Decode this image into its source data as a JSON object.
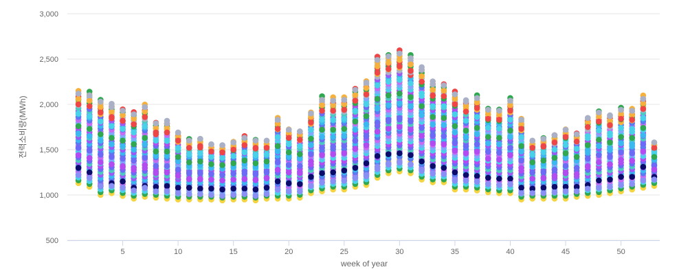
{
  "chart_data": {
    "type": "scatter",
    "title": "",
    "xlabel": "week of year",
    "ylabel": "전력소비량(MWh)",
    "xlim": [
      0,
      53.5
    ],
    "ylim": [
      500,
      3000
    ],
    "x_ticks": [
      "5",
      "10",
      "15",
      "20",
      "25",
      "30",
      "35",
      "40",
      "45",
      "50"
    ],
    "y_ticks": [
      "500",
      "1,000",
      "1,500",
      "2,000",
      "2,500",
      "3,000"
    ],
    "grid": "horizontal",
    "legend": "none",
    "x": [
      1,
      2,
      3,
      4,
      5,
      6,
      7,
      8,
      9,
      10,
      11,
      12,
      13,
      14,
      15,
      16,
      17,
      18,
      19,
      20,
      21,
      22,
      23,
      24,
      25,
      26,
      27,
      28,
      29,
      30,
      31,
      32,
      33,
      34,
      35,
      36,
      37,
      38,
      39,
      40,
      41,
      42,
      43,
      44,
      45,
      46,
      47,
      48,
      49,
      50,
      51,
      52,
      53
    ],
    "weekly_range": {
      "min": [
        1130,
        1090,
        1000,
        1020,
        990,
        960,
        980,
        970,
        960,
        950,
        950,
        950,
        950,
        940,
        950,
        950,
        940,
        960,
        960,
        960,
        970,
        1020,
        1040,
        1060,
        1060,
        1090,
        1110,
        1190,
        1240,
        1260,
        1240,
        1170,
        1140,
        1140,
        1060,
        1060,
        1050,
        1030,
        1020,
        1020,
        950,
        960,
        960,
        960,
        960,
        980,
        990,
        1000,
        1020,
        1040,
        1060,
        1080,
        1100
      ],
      "max": [
        2160,
        2140,
        2070,
        2010,
        1970,
        1920,
        2010,
        1820,
        1820,
        1710,
        1620,
        1640,
        1580,
        1570,
        1600,
        1660,
        1620,
        1620,
        1870,
        1750,
        1730,
        1940,
        2090,
        2080,
        2090,
        2200,
        2280,
        2530,
        2570,
        2600,
        2550,
        2420,
        2260,
        2250,
        2150,
        2070,
        2110,
        1970,
        1970,
        2080,
        1860,
        1620,
        1640,
        1680,
        1750,
        1700,
        1880,
        1940,
        1900,
        1970,
        1960,
        2100,
        1600
      ]
    },
    "series": [
      {
        "color": "#6b6bf5",
        "values": [
          1520,
          1490,
          1450,
          1420,
          1400,
          1380,
          1410,
          1320,
          1320,
          1280,
          1250,
          1250,
          1230,
          1220,
          1240,
          1260,
          1240,
          1260,
          1360,
          1330,
          1320,
          1450,
          1520,
          1530,
          1540,
          1600,
          1650,
          1800,
          1830,
          1850,
          1820,
          1740,
          1660,
          1650,
          1580,
          1540,
          1560,
          1480,
          1470,
          1520,
          1380,
          1250,
          1260,
          1280,
          1320,
          1300,
          1400,
          1440,
          1420,
          1470,
          1460,
          1560,
          1330
        ]
      },
      {
        "color": "#b24cf0",
        "values": [
          1440,
          1410,
          1360,
          1340,
          1320,
          1300,
          1330,
          1240,
          1250,
          1210,
          1180,
          1180,
          1170,
          1160,
          1170,
          1180,
          1170,
          1190,
          1280,
          1250,
          1240,
          1370,
          1440,
          1450,
          1460,
          1510,
          1550,
          1700,
          1730,
          1750,
          1720,
          1650,
          1570,
          1560,
          1490,
          1460,
          1480,
          1400,
          1390,
          1440,
          1300,
          1180,
          1190,
          1210,
          1240,
          1230,
          1320,
          1360,
          1340,
          1390,
          1380,
          1480,
          1280
        ]
      },
      {
        "color": "#48d1e8",
        "values": [
          1900,
          1870,
          1810,
          1760,
          1730,
          1690,
          1760,
          1600,
          1600,
          1520,
          1450,
          1460,
          1420,
          1410,
          1430,
          1470,
          1440,
          1450,
          1640,
          1560,
          1540,
          1720,
          1830,
          1830,
          1840,
          1930,
          2000,
          2210,
          2250,
          2270,
          2230,
          2120,
          1980,
          1980,
          1890,
          1820,
          1860,
          1740,
          1730,
          1830,
          1640,
          1450,
          1470,
          1500,
          1550,
          1510,
          1650,
          1710,
          1680,
          1740,
          1730,
          1850,
          1470
        ]
      },
      {
        "color": "#3cb8f0",
        "values": [
          1680,
          1650,
          1600,
          1560,
          1540,
          1500,
          1560,
          1430,
          1430,
          1370,
          1320,
          1330,
          1300,
          1290,
          1310,
          1340,
          1310,
          1330,
          1480,
          1420,
          1400,
          1550,
          1640,
          1640,
          1650,
          1720,
          1780,
          1960,
          1990,
          2010,
          1980,
          1880,
          1780,
          1770,
          1690,
          1640,
          1670,
          1570,
          1560,
          1640,
          1480,
          1320,
          1340,
          1360,
          1410,
          1380,
          1490,
          1540,
          1510,
          1570,
          1560,
          1660,
          1390
        ]
      },
      {
        "color": "#f5b13b",
        "values": [
          2060,
          2040,
          1970,
          1920,
          1880,
          1840,
          1920,
          1740,
          1740,
          1640,
          1560,
          1580,
          1520,
          1510,
          1540,
          1590,
          1560,
          1560,
          1780,
          1680,
          1660,
          1860,
          1990,
          1990,
          2000,
          2100,
          2180,
          2420,
          2460,
          2490,
          2440,
          2310,
          2160,
          2150,
          2060,
          1980,
          2020,
          1890,
          1880,
          1990,
          1780,
          1560,
          1580,
          1620,
          1680,
          1630,
          1800,
          1860,
          1820,
          1890,
          1880,
          2010,
          1550
        ]
      },
      {
        "color": "#ee4646",
        "values": [
          2000,
          1980,
          1910,
          1860,
          1820,
          1780,
          1860,
          1690,
          1690,
          1600,
          1520,
          1540,
          1480,
          1470,
          1500,
          1550,
          1520,
          1520,
          1730,
          1630,
          1610,
          1800,
          1930,
          1930,
          1940,
          2040,
          2110,
          2350,
          2390,
          2420,
          2370,
          2250,
          2100,
          2090,
          2000,
          1920,
          1960,
          1840,
          1830,
          1930,
          1730,
          1520,
          1540,
          1580,
          1640,
          1590,
          1750,
          1810,
          1770,
          1840,
          1830,
          1950,
          1520
        ]
      },
      {
        "color": "#2fa84f",
        "values": [
          1760,
          1730,
          1670,
          1630,
          1600,
          1560,
          1630,
          1480,
          1480,
          1420,
          1360,
          1370,
          1340,
          1330,
          1350,
          1380,
          1350,
          1370,
          1540,
          1470,
          1450,
          1620,
          1720,
          1720,
          1730,
          1810,
          1870,
          2060,
          2100,
          2120,
          2080,
          1980,
          1860,
          1850,
          1760,
          1710,
          1740,
          1640,
          1630,
          1710,
          1540,
          1360,
          1380,
          1410,
          1460,
          1420,
          1550,
          1610,
          1580,
          1640,
          1630,
          1740,
          1420
        ]
      },
      {
        "color": "#0b0b6b",
        "values": [
          1300,
          1250,
          1100,
          1130,
          1150,
          1080,
          1100,
          1090,
          1100,
          1080,
          1080,
          1070,
          1070,
          1060,
          1070,
          1070,
          1060,
          1080,
          1150,
          1130,
          1120,
          1200,
          1240,
          1250,
          1270,
          1300,
          1350,
          1430,
          1450,
          1460,
          1440,
          1370,
          1320,
          1300,
          1250,
          1220,
          1210,
          1190,
          1180,
          1180,
          1080,
          1070,
          1080,
          1090,
          1090,
          1090,
          1110,
          1160,
          1170,
          1200,
          1200,
          1310,
          1200
        ]
      },
      {
        "color": "#aab0c6",
        "values": [
          2120,
          2100,
          2030,
          1970,
          1930,
          1890,
          1970,
          1790,
          1790,
          1690,
          1600,
          1620,
          1560,
          1550,
          1580,
          1630,
          1600,
          1600,
          1830,
          1720,
          1700,
          1900,
          2050,
          2040,
          2050,
          2160,
          2240,
          2490,
          2530,
          2560,
          2510,
          2380,
          2220,
          2210,
          2110,
          2030,
          2070,
          1940,
          1930,
          2040,
          1830,
          1600,
          1620,
          1660,
          1720,
          1670,
          1850,
          1910,
          1870,
          1940,
          1930,
          2060,
          1580
        ]
      },
      {
        "color": "#8a8ff5",
        "values": [
          1220,
          1190,
          1100,
          1100,
          1080,
          1050,
          1080,
          1040,
          1040,
          1020,
          1010,
          1010,
          1000,
          990,
          1000,
          1010,
          990,
          1010,
          1060,
          1040,
          1040,
          1100,
          1140,
          1150,
          1160,
          1190,
          1220,
          1310,
          1350,
          1370,
          1340,
          1280,
          1240,
          1230,
          1170,
          1160,
          1150,
          1120,
          1110,
          1120,
          1020,
          1020,
          1020,
          1030,
          1040,
          1040,
          1070,
          1080,
          1090,
          1110,
          1120,
          1160,
          1170
        ]
      }
    ]
  }
}
